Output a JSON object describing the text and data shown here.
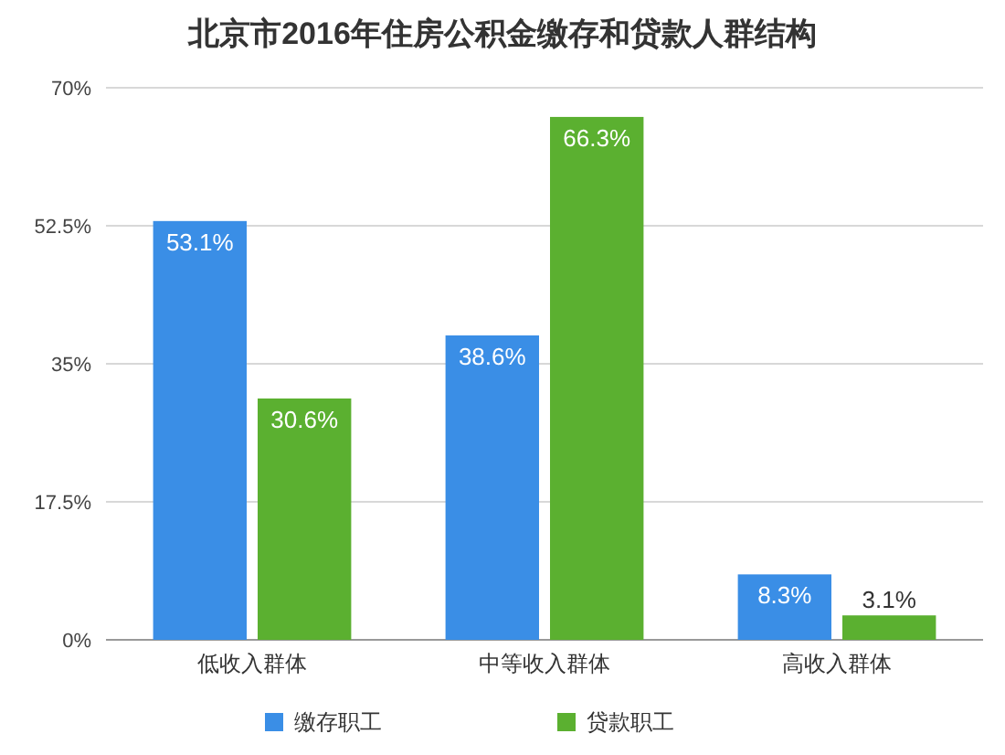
{
  "chart_data": {
    "type": "bar",
    "title": "北京市2016年住房公积金缴存和贷款人群结构",
    "categories": [
      "低收入群体",
      "中等收入群体",
      "高收入群体"
    ],
    "series": [
      {
        "name": "缴存职工",
        "color": "#3a8ee6",
        "values": [
          53.1,
          38.6,
          8.3
        ],
        "value_labels": [
          "53.1%",
          "38.6%",
          "8.3%"
        ]
      },
      {
        "name": "贷款职工",
        "color": "#5bb030",
        "values": [
          30.6,
          66.3,
          3.1
        ],
        "value_labels": [
          "30.6%",
          "66.3%",
          "3.1%"
        ]
      }
    ],
    "ylim": [
      0,
      70
    ],
    "yticks": [
      {
        "value": 0,
        "label": "0%"
      },
      {
        "value": 17.5,
        "label": "17.5%"
      },
      {
        "value": 35,
        "label": "35%"
      },
      {
        "value": 52.5,
        "label": "52.5%"
      },
      {
        "value": 70,
        "label": "70%"
      }
    ],
    "grid": "y",
    "legend": "bottom"
  }
}
